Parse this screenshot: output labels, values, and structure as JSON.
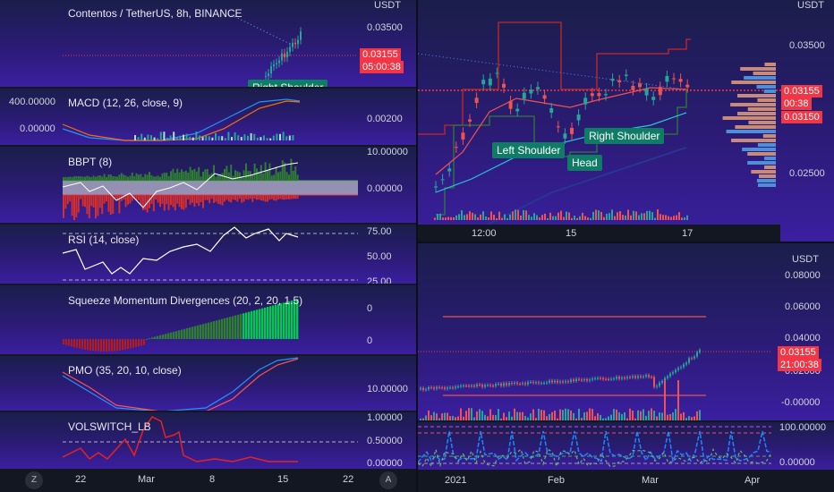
{
  "left": {
    "price": {
      "title": "Contentos / TetherUS, 8h, BINANCE",
      "currency": "USDT",
      "tick": "0.03500",
      "last_price": "0.03155",
      "countdown": "05:00:38",
      "callout": "Right Shoulder"
    },
    "macd": {
      "label": "MACD (12, 26, close, 9)",
      "left_top": "400.00000",
      "left_mid": "0.00000",
      "tick": "0.00200"
    },
    "bbpt": {
      "label": "BBPT (8)",
      "tick": "10.00000",
      "tick2": "0.00000"
    },
    "rsi": {
      "label": "RSI (14, close)",
      "ticks": [
        "75.00",
        "50.00",
        "25.00"
      ]
    },
    "squeeze": {
      "label": "Squeeze Momentum Divergences (20, 2, 20, 1.5)",
      "ticks": [
        "0",
        "0"
      ]
    },
    "pmo": {
      "label": "PMO (35, 20, 10, close)",
      "tick": "10.00000"
    },
    "volswitch": {
      "label": "VOLSWITCH_LB",
      "ticks": [
        "1.00000",
        "0.50000",
        "0.00000"
      ]
    },
    "xaxis": [
      "22",
      "Mar",
      "8",
      "15",
      "22"
    ],
    "buttons": {
      "z": "Z",
      "a": "A"
    }
  },
  "topright": {
    "currency": "USDT",
    "ticks": [
      "0.03500",
      "0.02500"
    ],
    "last_price": "0.03155",
    "countdown": "00:38",
    "level": "0.03150",
    "callouts": {
      "left_shoulder": "Left Shoulder",
      "head": "Head",
      "right_shoulder": "Right Shoulder"
    },
    "xaxis": [
      "12:00",
      "15",
      "17"
    ]
  },
  "bottomright": {
    "currency": "USDT",
    "ticks": [
      "0.08000",
      "0.06000",
      "0.04000",
      "0.02000",
      "-0.00000"
    ],
    "last_price": "0.03155",
    "countdown": "21:00:38",
    "osc_ticks": [
      "100.00000",
      "0.00000"
    ],
    "xaxis": [
      "2021",
      "Feb",
      "Mar",
      "Apr"
    ]
  },
  "colors": {
    "up": "#26a69a",
    "down": "#ef5350",
    "accent_red": "#f23645",
    "callout": "#0f7c66"
  }
}
